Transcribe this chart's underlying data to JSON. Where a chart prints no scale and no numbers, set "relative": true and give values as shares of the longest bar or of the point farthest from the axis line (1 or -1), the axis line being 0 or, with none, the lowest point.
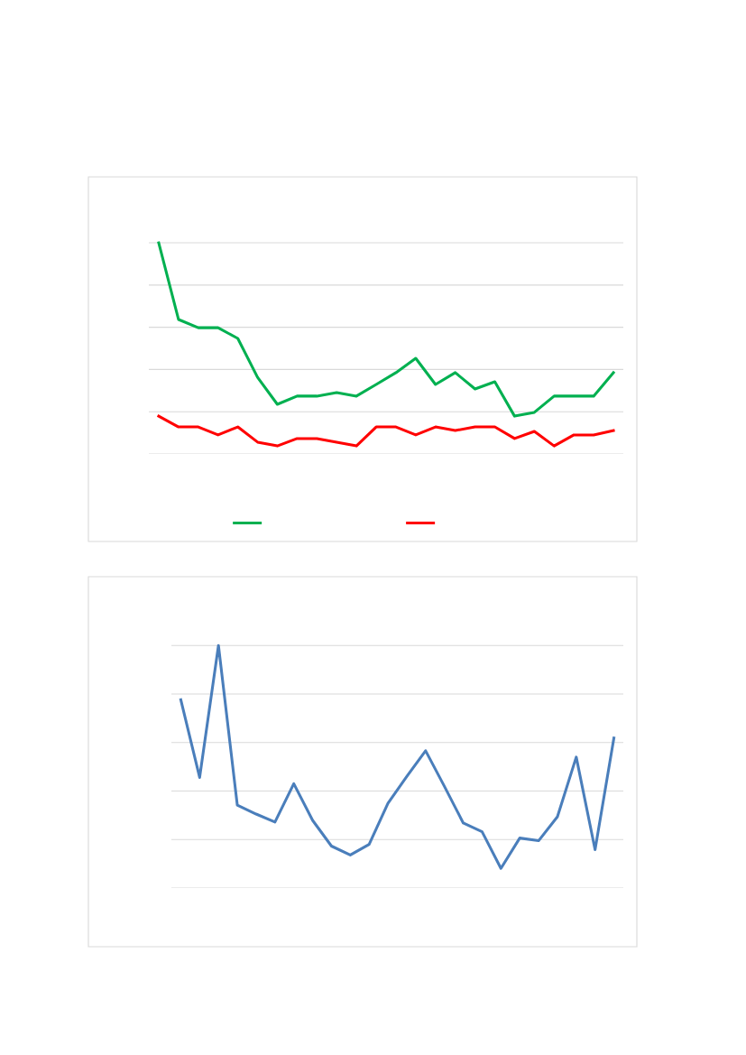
{
  "chart_data": [
    {
      "type": "line",
      "relative": true,
      "grid": "y",
      "categories": [
        null,
        null,
        null,
        null,
        null,
        null,
        null,
        null,
        null,
        null,
        null,
        null,
        null,
        null,
        null,
        null,
        null,
        null,
        null,
        null,
        null,
        null,
        null,
        null
      ],
      "series": [
        {
          "color": "#00b050",
          "values": [
            1.0,
            0.637,
            0.598,
            0.598,
            0.547,
            0.363,
            0.235,
            0.274,
            0.274,
            0.291,
            0.274,
            0.329,
            0.385,
            0.453,
            0.329,
            0.385,
            0.308,
            0.342,
            0.179,
            0.197,
            0.274,
            0.274,
            0.274,
            0.385
          ]
        },
        {
          "color": "#ff0000",
          "values": [
            0.179,
            0.128,
            0.128,
            0.09,
            0.128,
            0.056,
            0.038,
            0.073,
            0.073,
            0.056,
            0.038,
            0.128,
            0.128,
            0.09,
            0.128,
            0.111,
            0.128,
            0.128,
            0.073,
            0.107,
            0.038,
            0.09,
            0.09,
            0.111
          ]
        }
      ]
    },
    {
      "type": "line",
      "relative": true,
      "grid": "y",
      "categories": [
        null,
        null,
        null,
        null,
        null,
        null,
        null,
        null,
        null,
        null,
        null,
        null,
        null,
        null,
        null,
        null,
        null,
        null,
        null,
        null,
        null,
        null,
        null,
        null
      ],
      "series": [
        {
          "color": "#4a7ebb",
          "values": [
            0.776,
            0.456,
            1.0,
            0.342,
            0.305,
            0.272,
            0.43,
            0.279,
            0.173,
            0.136,
            0.18,
            0.349,
            0.46,
            0.566,
            0.419,
            0.268,
            0.232,
            0.081,
            0.206,
            0.195,
            0.294,
            0.54,
            0.158,
            0.618
          ]
        }
      ]
    }
  ]
}
